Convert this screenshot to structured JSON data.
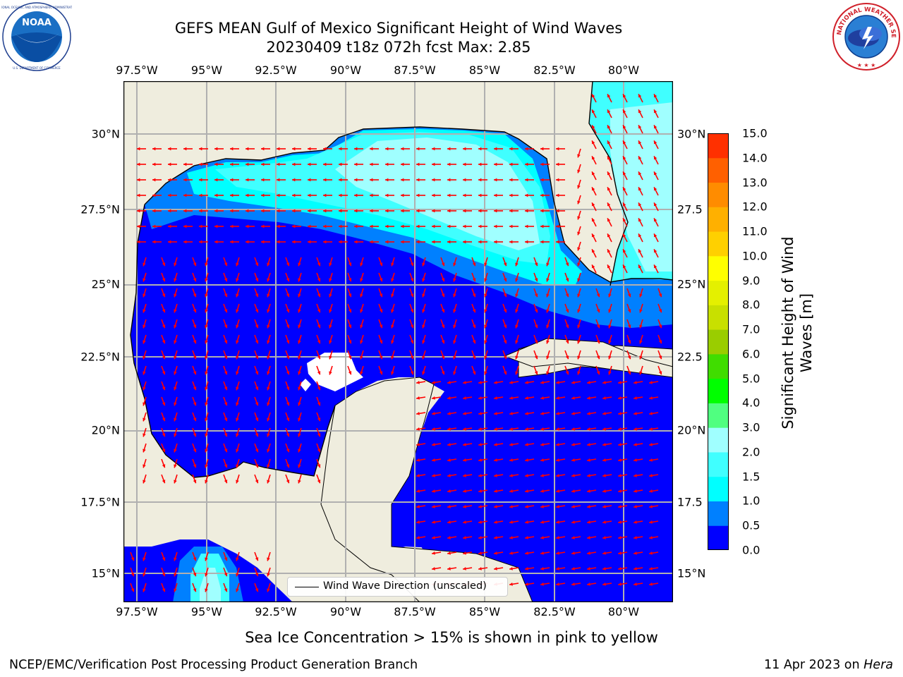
{
  "title": {
    "line1": "GEFS MEAN Gulf of Mexico Significant Height of Wind Waves",
    "line2": "20230409 t18z 072h fcst   Max: 2.85"
  },
  "logos": {
    "noara": {
      "icon": "noaa-logo",
      "text": "NOAA",
      "ring_text": "NATIONAL OCEANIC AND ATMOSPHERIC ADMINISTRATION",
      "bottom_text": "U.S. DEPARTMENT OF COMMERCE"
    },
    "nws": {
      "icon": "national-weather-service-logo",
      "ring_text": "NATIONAL WEATHER SERVICE"
    }
  },
  "map": {
    "longitude_ticks": [
      "97.5°W",
      "95°W",
      "92.5°W",
      "90°W",
      "87.5°W",
      "85°W",
      "82.5°W",
      "80°W"
    ],
    "latitude_ticks_left": [
      "30°N",
      "27.5°N",
      "25°N",
      "22.5°N",
      "20°N",
      "17.5°N",
      "15°N"
    ],
    "latitude_ticks_right": [
      "30°N",
      "27.5",
      "25°N",
      "22.5",
      "20°N",
      "17.5",
      "15°N"
    ],
    "land_color": "#efedde",
    "grid_color": "#b0b0b0",
    "arrow_color": "#ff0000",
    "legend": "Wind Wave Direction (unscaled)"
  },
  "colorbar": {
    "label_line1": "Significant Height of Wind",
    "label_line2": "Waves [m]",
    "ticks": [
      "15.0",
      "14.0",
      "13.0",
      "12.0",
      "11.0",
      "10.0",
      "9.0",
      "8.0",
      "7.0",
      "6.0",
      "5.0",
      "4.0",
      "3.0",
      "2.0",
      "1.5",
      "1.0",
      "0.5",
      "0.0"
    ],
    "colors": [
      "#0000ff",
      "#0080ff",
      "#00ffff",
      "#40ffff",
      "#a0ffff",
      "#50ff80",
      "#00ff00",
      "#40dd00",
      "#9acd00",
      "#c8e000",
      "#e4f000",
      "#ffff00",
      "#ffd000",
      "#ffb000",
      "#ff8c00",
      "#ff6000",
      "#ff3000",
      "#ff0000"
    ]
  },
  "notes": {
    "sea_ice": "Sea Ice Concentration > 15% is shown in pink to yellow"
  },
  "footer": {
    "left": "NCEP/EMC/Verification Post Processing Product Generation Branch",
    "date": "11 Apr 2023 on ",
    "machine": "Hera"
  }
}
